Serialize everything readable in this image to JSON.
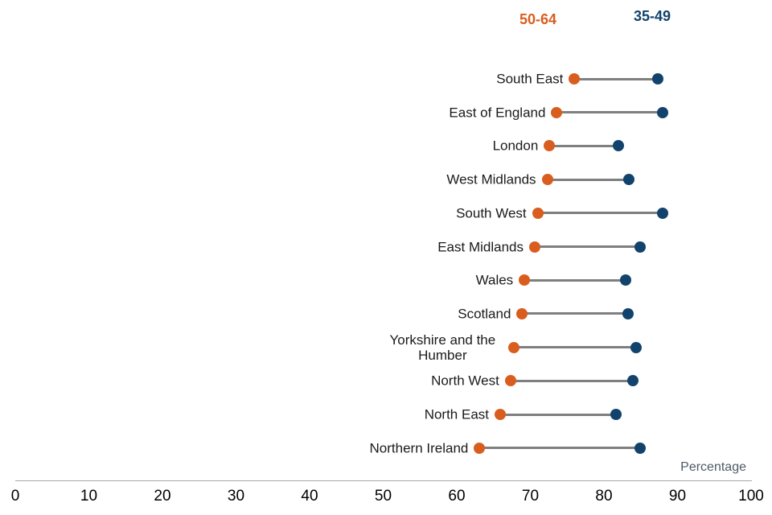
{
  "legend": {
    "series_50_64": "50-64",
    "series_35_49": "35-49"
  },
  "axis": {
    "label": "Percentage",
    "ticks": [
      "0",
      "10",
      "20",
      "30",
      "40",
      "50",
      "60",
      "70",
      "80",
      "90",
      "100"
    ]
  },
  "colors": {
    "orange": "#d95d1f",
    "blue": "#12436d",
    "connector": "#7f7f7f",
    "axis_line": "#a6a6a6",
    "axis_label_text": "#4e5a66",
    "label_text": "#1a1a1a"
  },
  "chart_data": {
    "type": "dumbbell",
    "title": "",
    "xlabel": "Percentage",
    "ylabel": "",
    "xlim": [
      0,
      100
    ],
    "x_ticks": [
      0,
      10,
      20,
      30,
      40,
      50,
      60,
      70,
      80,
      90,
      100
    ],
    "grid": false,
    "legend_position": "top-right",
    "categories": [
      "South East",
      "East of England",
      "London",
      "West Midlands",
      "South West",
      "East Midlands",
      "Wales",
      "Scotland",
      "Yorkshire and the Humber",
      "North West",
      "North East",
      "Northern Ireland"
    ],
    "series": [
      {
        "name": "50-64",
        "color": "#d95d1f",
        "values": [
          76.0,
          73.6,
          72.6,
          72.3,
          71.0,
          70.6,
          69.2,
          68.9,
          67.8,
          67.3,
          65.9,
          63.1
        ]
      },
      {
        "name": "35-49",
        "color": "#12436d",
        "values": [
          87.3,
          88.0,
          82.0,
          83.4,
          88.0,
          84.9,
          83.0,
          83.3,
          84.4,
          83.9,
          81.6,
          84.9
        ]
      }
    ]
  }
}
